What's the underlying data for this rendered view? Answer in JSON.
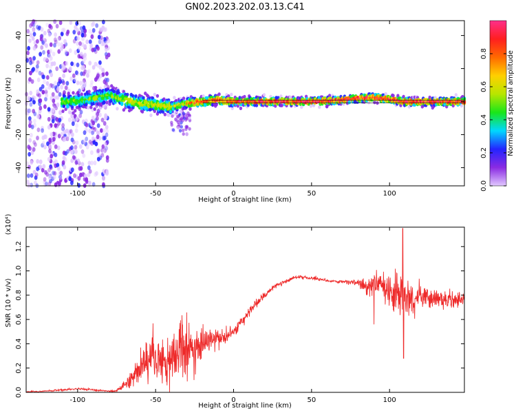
{
  "title": "GN02.2023.202.03.13.C41",
  "chart_data": [
    {
      "type": "heatmap",
      "xlabel": "Height of straight line (km)",
      "ylabel": "Frequency (Hz)",
      "xlim": [
        -133,
        148
      ],
      "ylim": [
        -51,
        49
      ],
      "x_ticks": [
        -100,
        -50,
        0,
        50,
        100
      ],
      "y_ticks": [
        -40,
        -20,
        0,
        20,
        40
      ],
      "colorbar": {
        "label": "Normalized spectral amplitude",
        "range": [
          0,
          1
        ],
        "ticks": [
          0.0,
          0.2,
          0.4,
          0.6,
          0.8
        ],
        "colormap": [
          "#e1c8ff",
          "#8a2be2",
          "#2424ff",
          "#00d8ff",
          "#19e619",
          "#b8e600",
          "#ffd000",
          "#ff6a00",
          "#ff1f1f",
          "#ff2f8a"
        ]
      },
      "ridge": {
        "x": [
          -110,
          -100,
          -90,
          -80,
          -70,
          -60,
          -50,
          -40,
          -30,
          -20,
          -10,
          0,
          10,
          20,
          30,
          40,
          50,
          60,
          70,
          80,
          90,
          100,
          110,
          120,
          130,
          140,
          148
        ],
        "frequency": [
          0,
          0.5,
          2,
          4,
          1,
          -1,
          -2,
          -3,
          -1,
          0,
          1,
          0,
          0,
          0,
          0,
          0,
          0,
          0.5,
          1,
          2,
          2.5,
          1.5,
          0,
          0,
          0,
          0,
          0
        ]
      },
      "regions": [
        {
          "name": "broadband noise",
          "x_range": [
            -133,
            -80
          ],
          "frequency_range": [
            -51,
            49
          ]
        },
        {
          "name": "low-amplitude tail",
          "x_range": [
            -40,
            -28
          ],
          "frequency_range": [
            -20,
            -5
          ]
        }
      ]
    },
    {
      "type": "line",
      "xlabel": "Height of straight line (km)",
      "ylabel": "SNR (10 * v/v)",
      "y_multiplier": "(x10⁴)",
      "xlim": [
        -133,
        148
      ],
      "ylim": [
        0,
        1.36
      ],
      "x_ticks": [
        -100,
        -50,
        0,
        50,
        100
      ],
      "y_ticks": [
        0.0,
        0.2,
        0.4,
        0.6,
        0.8,
        1.0,
        1.2
      ],
      "color": "#ee2a2a",
      "series": [
        {
          "x": [
            -133,
            -120,
            -110,
            -100,
            -90,
            -80,
            -75,
            -70,
            -65,
            -60,
            -55,
            -50,
            -45,
            -40,
            -35,
            -30,
            -25,
            -20,
            -15,
            -10,
            -5,
            0,
            5,
            10,
            15,
            20,
            25,
            30,
            40,
            50,
            60,
            70,
            80,
            85,
            90,
            95,
            100,
            105,
            110,
            115,
            120,
            130,
            140,
            148
          ],
          "values": [
            0.005,
            0.01,
            0.02,
            0.03,
            0.02,
            0.01,
            0.01,
            0.06,
            0.12,
            0.2,
            0.28,
            0.3,
            0.26,
            0.28,
            0.32,
            0.4,
            0.34,
            0.4,
            0.44,
            0.44,
            0.46,
            0.5,
            0.58,
            0.66,
            0.74,
            0.8,
            0.86,
            0.9,
            0.95,
            0.94,
            0.92,
            0.91,
            0.9,
            0.86,
            0.9,
            0.88,
            0.84,
            0.82,
            0.8,
            0.78,
            0.78,
            0.76,
            0.76,
            0.76
          ],
          "noise_amplitude": [
            0.005,
            0.005,
            0.01,
            0.01,
            0.01,
            0.005,
            0.01,
            0.05,
            0.1,
            0.15,
            0.18,
            0.2,
            0.2,
            0.22,
            0.25,
            0.3,
            0.22,
            0.2,
            0.12,
            0.1,
            0.08,
            0.06,
            0.05,
            0.05,
            0.04,
            0.03,
            0.02,
            0.02,
            0.015,
            0.015,
            0.015,
            0.015,
            0.03,
            0.08,
            0.12,
            0.14,
            0.16,
            0.2,
            0.22,
            0.15,
            0.12,
            0.1,
            0.08,
            0.06
          ]
        }
      ],
      "spikes": [
        {
          "x": 90,
          "value": 0.56
        },
        {
          "x": 108.5,
          "value": 1.35
        },
        {
          "x": 109,
          "value": 0.28
        }
      ]
    }
  ]
}
